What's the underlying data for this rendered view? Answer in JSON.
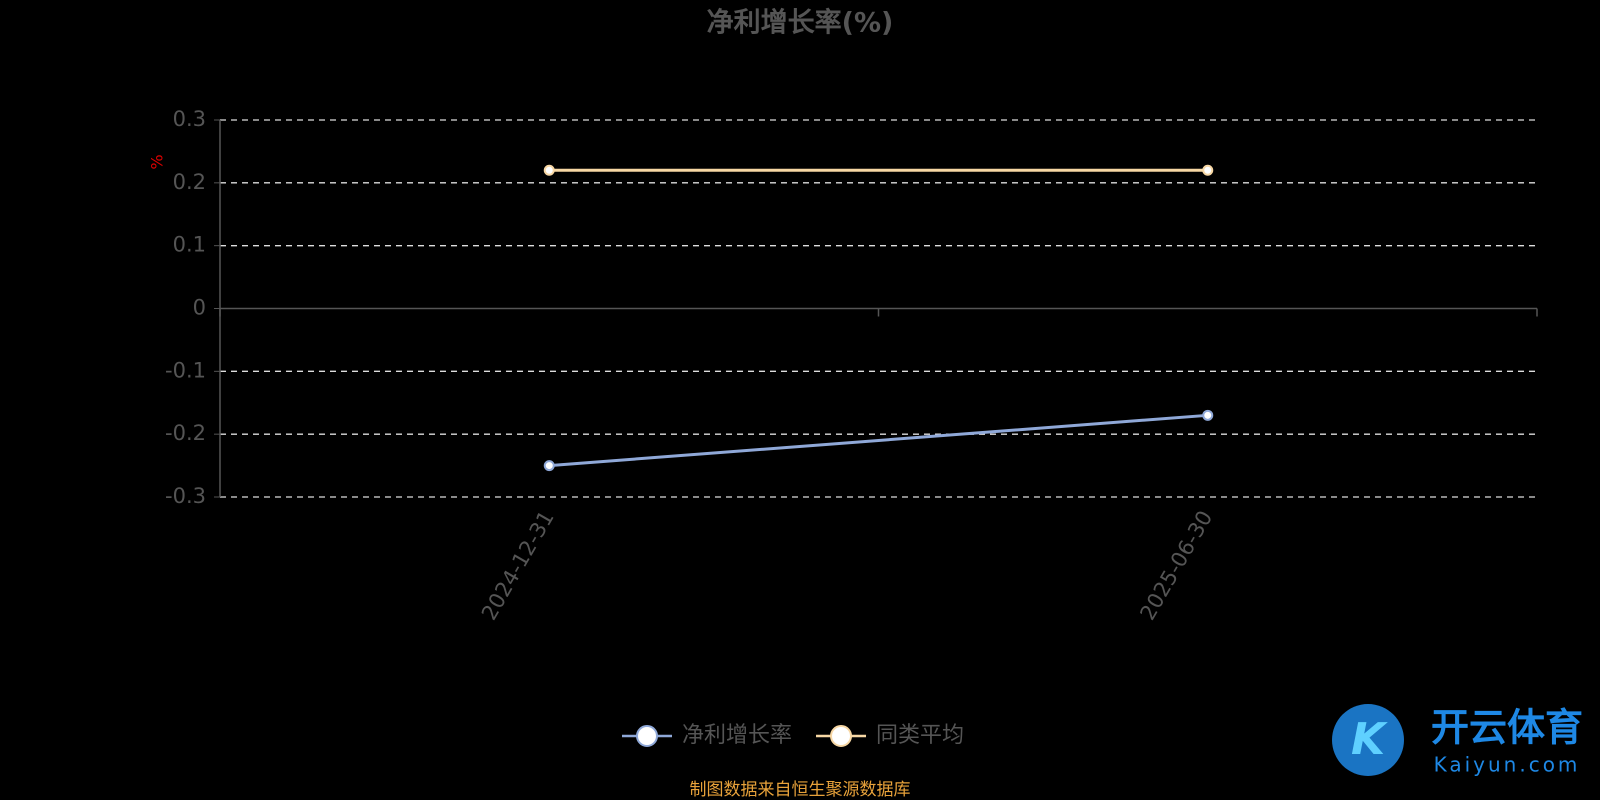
{
  "chart_data": {
    "type": "line",
    "title": "净利增长率(%)",
    "y_label": "%",
    "categories": [
      "2024-12-31",
      "2025-06-30"
    ],
    "series": [
      {
        "name": "净利增长率",
        "color": "#8fa8d8",
        "values": [
          -0.25,
          -0.17
        ]
      },
      {
        "name": "同类平均",
        "color": "#f7d7a4",
        "values": [
          0.22,
          0.22
        ]
      }
    ],
    "ylim": [
      -0.3,
      0.3
    ],
    "yticks": [
      -0.3,
      -0.2,
      -0.1,
      0,
      0.1,
      0.2,
      0.3
    ],
    "grid": true,
    "legend": "bottom",
    "source": "制图数据来自恒生聚源数据库"
  },
  "watermark": {
    "brand": "开云体育",
    "site": "Kaiyun.com"
  }
}
